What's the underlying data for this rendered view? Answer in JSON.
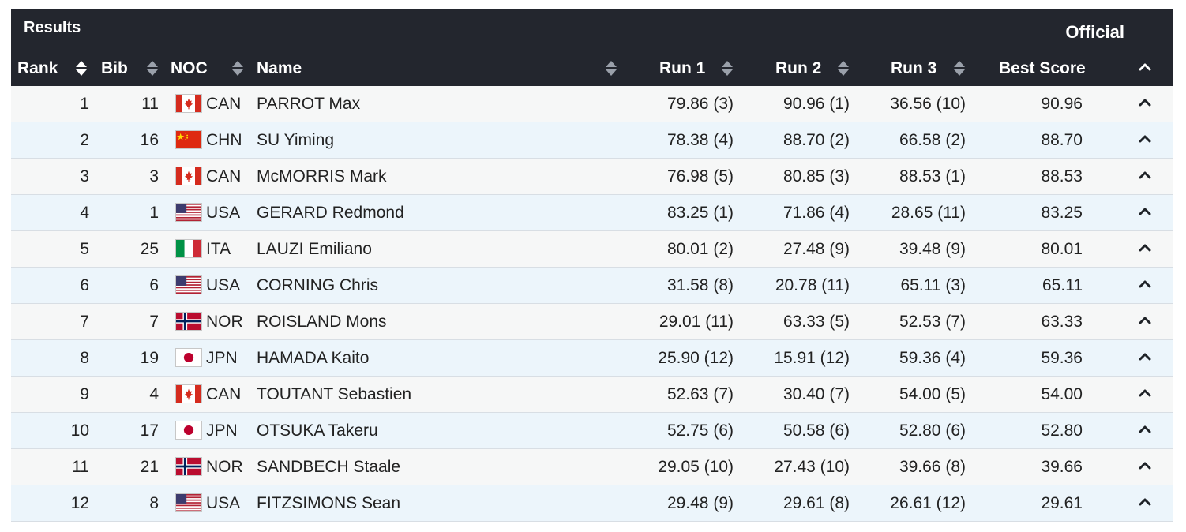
{
  "header": {
    "title": "Results",
    "status": "Official"
  },
  "columns": {
    "rank": "Rank",
    "bib": "Bib",
    "noc": "NOC",
    "name": "Name",
    "run1": "Run 1",
    "run2": "Run 2",
    "run3": "Run 3",
    "best": "Best Score"
  },
  "icons": {
    "sort": "sort-updown-icon",
    "expand": "chevron-up-icon"
  },
  "colors": {
    "header_bg": "#23262e",
    "row_odd": "#f6f7f7",
    "row_even": "#ecf5fb"
  },
  "rows": [
    {
      "rank": "1",
      "bib": "11",
      "noc": "CAN",
      "flag": "canada-flag-icon",
      "name": "PARROT Max",
      "run1": "79.86 (3)",
      "run2": "90.96 (1)",
      "run3": "36.56 (10)",
      "best": "90.96"
    },
    {
      "rank": "2",
      "bib": "16",
      "noc": "CHN",
      "flag": "china-flag-icon",
      "name": "SU Yiming",
      "run1": "78.38 (4)",
      "run2": "88.70 (2)",
      "run3": "66.58 (2)",
      "best": "88.70"
    },
    {
      "rank": "3",
      "bib": "3",
      "noc": "CAN",
      "flag": "canada-flag-icon",
      "name": "McMORRIS Mark",
      "run1": "76.98 (5)",
      "run2": "80.85 (3)",
      "run3": "88.53 (1)",
      "best": "88.53"
    },
    {
      "rank": "4",
      "bib": "1",
      "noc": "USA",
      "flag": "usa-flag-icon",
      "name": "GERARD Redmond",
      "run1": "83.25 (1)",
      "run2": "71.86 (4)",
      "run3": "28.65 (11)",
      "best": "83.25"
    },
    {
      "rank": "5",
      "bib": "25",
      "noc": "ITA",
      "flag": "italy-flag-icon",
      "name": "LAUZI Emiliano",
      "run1": "80.01 (2)",
      "run2": "27.48 (9)",
      "run3": "39.48 (9)",
      "best": "80.01"
    },
    {
      "rank": "6",
      "bib": "6",
      "noc": "USA",
      "flag": "usa-flag-icon",
      "name": "CORNING Chris",
      "run1": "31.58 (8)",
      "run2": "20.78 (11)",
      "run3": "65.11 (3)",
      "best": "65.11"
    },
    {
      "rank": "7",
      "bib": "7",
      "noc": "NOR",
      "flag": "norway-flag-icon",
      "name": "ROISLAND Mons",
      "run1": "29.01 (11)",
      "run2": "63.33 (5)",
      "run3": "52.53 (7)",
      "best": "63.33"
    },
    {
      "rank": "8",
      "bib": "19",
      "noc": "JPN",
      "flag": "japan-flag-icon",
      "name": "HAMADA Kaito",
      "run1": "25.90 (12)",
      "run2": "15.91 (12)",
      "run3": "59.36 (4)",
      "best": "59.36"
    },
    {
      "rank": "9",
      "bib": "4",
      "noc": "CAN",
      "flag": "canada-flag-icon",
      "name": "TOUTANT Sebastien",
      "run1": "52.63 (7)",
      "run2": "30.40 (7)",
      "run3": "54.00 (5)",
      "best": "54.00"
    },
    {
      "rank": "10",
      "bib": "17",
      "noc": "JPN",
      "flag": "japan-flag-icon",
      "name": "OTSUKA Takeru",
      "run1": "52.75 (6)",
      "run2": "50.58 (6)",
      "run3": "52.80 (6)",
      "best": "52.80"
    },
    {
      "rank": "11",
      "bib": "21",
      "noc": "NOR",
      "flag": "norway-flag-icon",
      "name": "SANDBECH Staale",
      "run1": "29.05 (10)",
      "run2": "27.43 (10)",
      "run3": "39.66 (8)",
      "best": "39.66"
    },
    {
      "rank": "12",
      "bib": "8",
      "noc": "USA",
      "flag": "usa-flag-icon",
      "name": "FITZSIMONS Sean",
      "run1": "29.48 (9)",
      "run2": "29.61 (8)",
      "run3": "26.61 (12)",
      "best": "29.61"
    }
  ]
}
